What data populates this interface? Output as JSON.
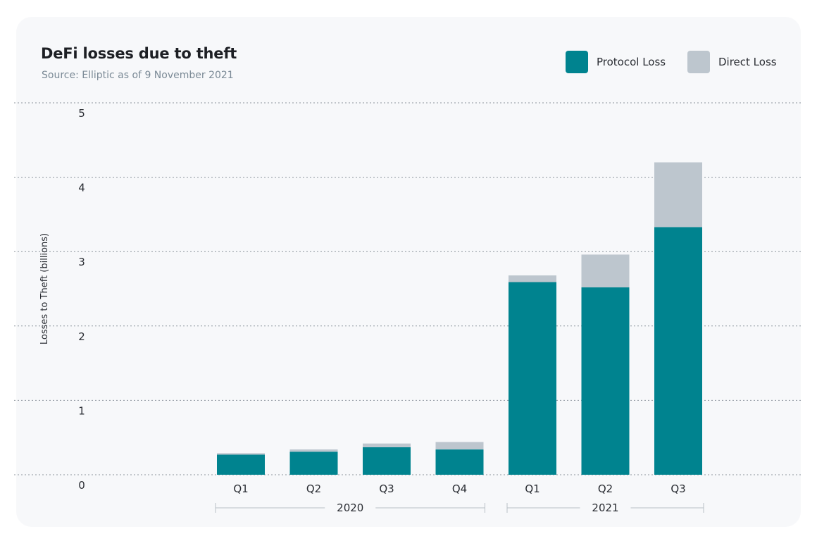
{
  "header": {
    "title": "DeFi losses due to theft",
    "subtitle": "Source: Elliptic as of 9 November 2021"
  },
  "legend": {
    "protocol_label": "Protocol Loss",
    "direct_label": "Direct Loss"
  },
  "colors": {
    "protocol": "#00838f",
    "direct": "#bdc6ce",
    "grid": "#8c949c",
    "bracket": "#b9c0c6"
  },
  "chart_data": {
    "type": "bar",
    "stacked": true,
    "ylabel": "Losses to Theft (billions)",
    "ylim": [
      0,
      5
    ],
    "yticks": [
      0,
      1,
      2,
      3,
      4,
      5
    ],
    "grid": true,
    "legend_position": "top-right",
    "categories": [
      "Q1",
      "Q2",
      "Q3",
      "Q4",
      "Q1",
      "Q2",
      "Q3"
    ],
    "groups": [
      {
        "label": "2020",
        "start": 0,
        "end": 3
      },
      {
        "label": "2021",
        "start": 4,
        "end": 6
      }
    ],
    "series": [
      {
        "name": "Protocol Loss",
        "values": [
          0.27,
          0.31,
          0.37,
          0.34,
          2.59,
          2.52,
          3.33
        ]
      },
      {
        "name": "Direct Loss",
        "values": [
          0.02,
          0.03,
          0.05,
          0.1,
          0.09,
          0.44,
          0.87
        ]
      }
    ]
  }
}
